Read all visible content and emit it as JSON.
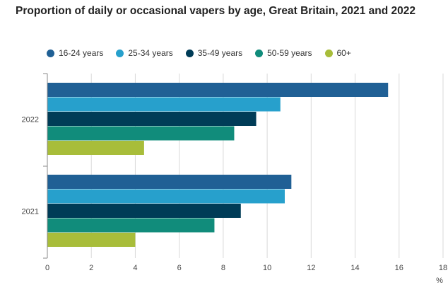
{
  "chart_data": {
    "type": "bar",
    "orientation": "horizontal",
    "title": "Proportion of daily or occasional vapers by age, Great Britain, 2021 and 2022",
    "categories": [
      "2022",
      "2021"
    ],
    "series": [
      {
        "name": "16-24 years",
        "color": "#206095",
        "values": [
          15.5,
          11.1
        ]
      },
      {
        "name": "25-34 years",
        "color": "#27a0cc",
        "values": [
          10.6,
          10.8
        ]
      },
      {
        "name": "35-49 years",
        "color": "#003c57",
        "values": [
          9.5,
          8.8
        ]
      },
      {
        "name": "50-59 years",
        "color": "#118c7b",
        "values": [
          8.5,
          7.6
        ]
      },
      {
        "name": "60+",
        "color": "#a8bd3a",
        "values": [
          4.4,
          4.0
        ]
      }
    ],
    "x_ticks": [
      "0",
      "2",
      "4",
      "6",
      "8",
      "10",
      "12",
      "14",
      "16",
      "18"
    ],
    "x_unit": "%",
    "xlim": [
      0,
      18
    ],
    "grid": true,
    "legend_position": "top"
  }
}
